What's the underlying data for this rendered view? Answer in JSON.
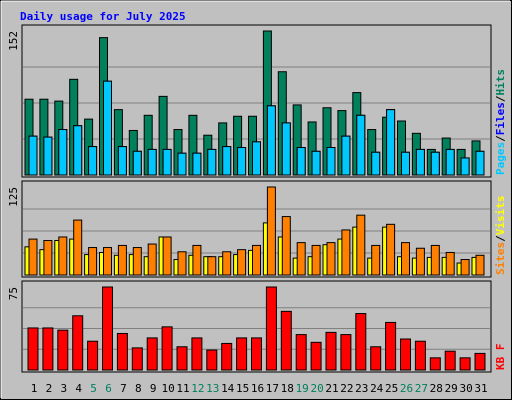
{
  "title": "Daily usage for July 2025",
  "legend_separator": "/",
  "chart_data": [
    {
      "type": "bar",
      "ylim": [
        0,
        152
      ],
      "yticks": [
        152
      ],
      "grid_divisions": 4,
      "series": [
        {
          "name": "Hits",
          "color": "#00805c",
          "values": [
            80,
            80,
            78,
            101,
            59,
            145,
            69,
            47,
            63,
            83,
            48,
            63,
            42,
            55,
            62,
            62,
            152,
            109,
            74,
            56,
            71,
            68,
            87,
            48,
            61,
            57,
            44,
            27,
            39,
            27,
            36
          ]
        },
        {
          "name": "Files",
          "color": "#0000ff",
          "values": [
            41,
            40,
            48,
            52,
            30,
            99,
            30,
            25,
            27,
            27,
            23,
            23,
            27,
            30,
            29,
            35,
            73,
            55,
            29,
            25,
            29,
            41,
            63,
            24,
            69,
            24,
            27,
            24,
            27,
            18,
            25
          ]
        },
        {
          "name": "Pages",
          "color": "#00c8ff",
          "values": [
            41,
            40,
            48,
            52,
            30,
            99,
            30,
            25,
            27,
            27,
            23,
            23,
            27,
            30,
            29,
            35,
            73,
            55,
            29,
            25,
            29,
            41,
            63,
            24,
            69,
            24,
            27,
            24,
            27,
            18,
            25
          ]
        }
      ]
    },
    {
      "type": "bar",
      "ylim": [
        0,
        125
      ],
      "yticks": [
        125
      ],
      "grid_divisions": 4,
      "series": [
        {
          "name": "Visits",
          "color": "#ffff00",
          "values": [
            40,
            36,
            49,
            51,
            29,
            32,
            28,
            29,
            26,
            54,
            22,
            28,
            26,
            26,
            29,
            35,
            74,
            54,
            24,
            26,
            43,
            51,
            68,
            24,
            68,
            26,
            24,
            25,
            25,
            17,
            25
          ]
        },
        {
          "name": "Sites",
          "color": "#ff8000",
          "values": [
            51,
            49,
            54,
            78,
            39,
            39,
            42,
            39,
            44,
            54,
            33,
            42,
            26,
            33,
            36,
            42,
            125,
            83,
            46,
            42,
            46,
            64,
            85,
            42,
            72,
            46,
            38,
            42,
            32,
            22,
            28
          ]
        }
      ]
    },
    {
      "type": "bar",
      "ylim": [
        0,
        75
      ],
      "yticks": [
        75
      ],
      "grid_divisions": 4,
      "categories": [
        "1",
        "2",
        "3",
        "4",
        "5",
        "6",
        "7",
        "8",
        "9",
        "10",
        "11",
        "12",
        "13",
        "14",
        "15",
        "16",
        "17",
        "18",
        "19",
        "20",
        "21",
        "22",
        "23",
        "24",
        "25",
        "26",
        "27",
        "28",
        "29",
        "30",
        "31"
      ],
      "category_colors": [
        "#000000",
        "#000000",
        "#000000",
        "#000000",
        "#00805c",
        "#00805c",
        "#000000",
        "#000000",
        "#000000",
        "#000000",
        "#000000",
        "#00805c",
        "#00805c",
        "#000000",
        "#000000",
        "#000000",
        "#000000",
        "#000000",
        "#00805c",
        "#00805c",
        "#000000",
        "#000000",
        "#000000",
        "#000000",
        "#000000",
        "#00805c",
        "#00805c",
        "#000000",
        "#000000",
        "#000000",
        "#000000"
      ],
      "series": [
        {
          "name": "KB F",
          "color": "#ff0000",
          "values": [
            38,
            38,
            36,
            49,
            26,
            75,
            33,
            20,
            29,
            39,
            21,
            29,
            18,
            24,
            29,
            29,
            75,
            53,
            32,
            25,
            34,
            32,
            51,
            21,
            43,
            28,
            26,
            11,
            17,
            11,
            15
          ]
        }
      ]
    }
  ]
}
